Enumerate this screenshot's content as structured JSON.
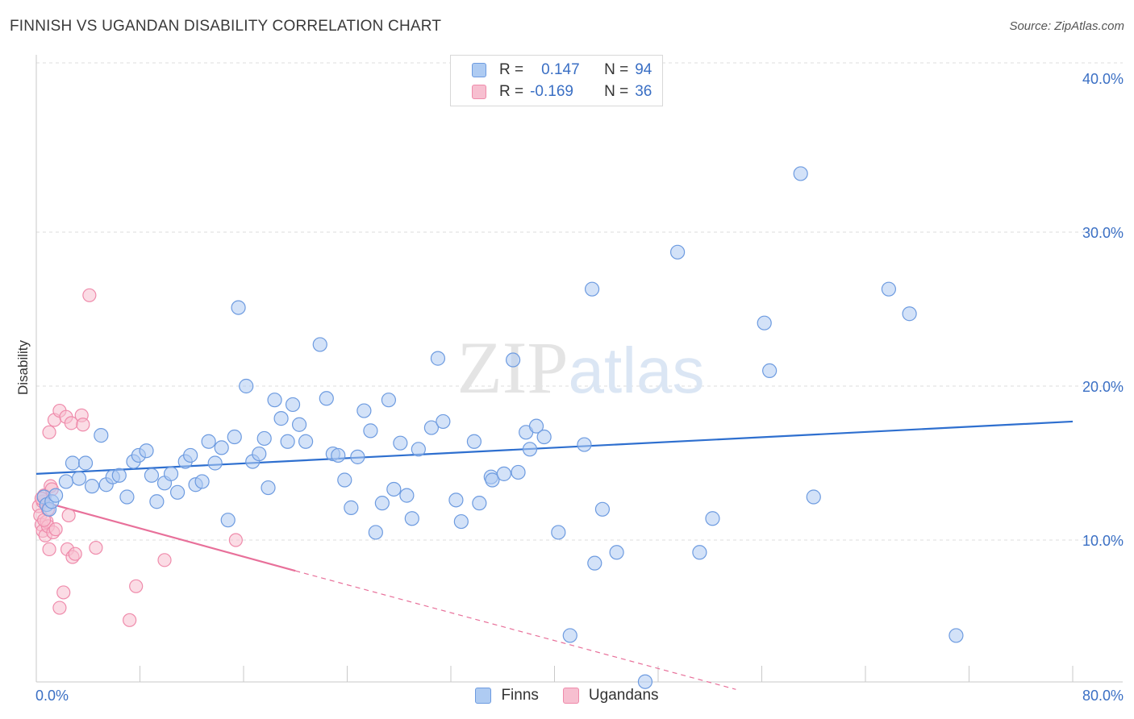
{
  "title": "FINNISH VS UGANDAN DISABILITY CORRELATION CHART",
  "source": "Source: ZipAtlas.com",
  "watermark": "ZIPatlas",
  "legend": {
    "rows": [
      {
        "r_label": "R =",
        "r_value": "0.147",
        "n_label": "N =",
        "n_value": "94"
      },
      {
        "r_label": "R =",
        "r_value": "-0.169",
        "n_label": "N =",
        "n_value": "36"
      }
    ]
  },
  "colors": {
    "finns_fill": "#aecbf2",
    "finns_stroke": "#6d9be0",
    "finns_line": "#2e6fcf",
    "ugandans_fill": "#f7bfd0",
    "ugandans_stroke": "#ef8bab",
    "ugandans_line": "#e8709a",
    "axis_label": "#3a6fc4"
  },
  "chart_data": {
    "type": "scatter",
    "title": "FINNISH VS UGANDAN DISABILITY CORRELATION CHART",
    "xlabel": "",
    "ylabel": "Disability",
    "xlim": [
      0,
      80
    ],
    "ylim": [
      0,
      40
    ],
    "x_tick_labels": [
      "0.0%",
      "80.0%"
    ],
    "y_tick_labels": [
      "10.0%",
      "20.0%",
      "30.0%",
      "40.0%"
    ],
    "y_ticks": [
      10,
      20,
      30,
      40
    ],
    "grid": true,
    "legend_placement": "top-center",
    "series": [
      {
        "name": "Finns",
        "r": 0.147,
        "n": 94,
        "trend": {
          "x": [
            0,
            80
          ],
          "y": [
            14.3,
            17.7
          ]
        },
        "points": [
          [
            0.6,
            12.8
          ],
          [
            0.8,
            12.3
          ],
          [
            1.0,
            12.0
          ],
          [
            1.2,
            12.5
          ],
          [
            1.5,
            12.9
          ],
          [
            2.3,
            13.8
          ],
          [
            2.8,
            15.0
          ],
          [
            3.3,
            14.0
          ],
          [
            3.8,
            15.0
          ],
          [
            4.3,
            13.5
          ],
          [
            5.0,
            16.8
          ],
          [
            5.4,
            13.6
          ],
          [
            5.9,
            14.1
          ],
          [
            6.4,
            14.2
          ],
          [
            7.0,
            12.8
          ],
          [
            7.5,
            15.1
          ],
          [
            7.9,
            15.5
          ],
          [
            8.5,
            15.8
          ],
          [
            8.9,
            14.2
          ],
          [
            9.3,
            12.5
          ],
          [
            9.9,
            13.7
          ],
          [
            10.4,
            14.3
          ],
          [
            10.9,
            13.1
          ],
          [
            11.5,
            15.1
          ],
          [
            11.9,
            15.5
          ],
          [
            12.3,
            13.6
          ],
          [
            12.8,
            13.8
          ],
          [
            13.3,
            16.4
          ],
          [
            13.8,
            15.0
          ],
          [
            14.3,
            16.0
          ],
          [
            14.8,
            11.3
          ],
          [
            15.3,
            16.7
          ],
          [
            15.6,
            25.1
          ],
          [
            16.2,
            20.0
          ],
          [
            16.7,
            15.1
          ],
          [
            17.2,
            15.6
          ],
          [
            17.6,
            16.6
          ],
          [
            17.9,
            13.4
          ],
          [
            18.4,
            19.1
          ],
          [
            18.9,
            17.9
          ],
          [
            19.4,
            16.4
          ],
          [
            19.8,
            18.8
          ],
          [
            20.3,
            17.5
          ],
          [
            20.8,
            16.4
          ],
          [
            21.9,
            22.7
          ],
          [
            22.4,
            19.2
          ],
          [
            22.9,
            15.6
          ],
          [
            23.3,
            15.5
          ],
          [
            23.8,
            13.9
          ],
          [
            24.3,
            12.1
          ],
          [
            24.8,
            15.4
          ],
          [
            25.3,
            18.4
          ],
          [
            25.8,
            17.1
          ],
          [
            26.2,
            10.5
          ],
          [
            26.7,
            12.4
          ],
          [
            27.2,
            19.1
          ],
          [
            27.6,
            13.3
          ],
          [
            28.1,
            16.3
          ],
          [
            28.6,
            12.9
          ],
          [
            29.0,
            11.4
          ],
          [
            29.5,
            15.9
          ],
          [
            30.5,
            17.3
          ],
          [
            31.0,
            21.8
          ],
          [
            31.4,
            17.7
          ],
          [
            32.4,
            12.6
          ],
          [
            32.8,
            11.2
          ],
          [
            33.8,
            16.4
          ],
          [
            34.2,
            12.4
          ],
          [
            35.1,
            14.1
          ],
          [
            35.2,
            13.9
          ],
          [
            36.1,
            14.3
          ],
          [
            37.2,
            14.4
          ],
          [
            36.8,
            21.7
          ],
          [
            37.8,
            17.0
          ],
          [
            38.1,
            15.9
          ],
          [
            38.6,
            17.4
          ],
          [
            39.2,
            16.7
          ],
          [
            40.3,
            10.5
          ],
          [
            41.2,
            3.8
          ],
          [
            42.3,
            16.2
          ],
          [
            42.9,
            26.3
          ],
          [
            43.1,
            8.5
          ],
          [
            43.7,
            12.0
          ],
          [
            44.8,
            9.2
          ],
          [
            49.5,
            28.7
          ],
          [
            51.2,
            9.2
          ],
          [
            52.2,
            11.4
          ],
          [
            56.2,
            24.1
          ],
          [
            56.6,
            21.0
          ],
          [
            59.0,
            33.8
          ],
          [
            60.0,
            12.8
          ],
          [
            65.8,
            26.3
          ],
          [
            67.4,
            24.7
          ],
          [
            71.0,
            3.8
          ],
          [
            47.0,
            0.8
          ]
        ]
      },
      {
        "name": "Ugandans",
        "r": -0.169,
        "n": 36,
        "trend": {
          "x": [
            0,
            20
          ],
          "y": [
            12.6,
            8.0
          ]
        },
        "trend_dashed": {
          "x": [
            20,
            54
          ],
          "y": [
            8.0,
            0.3
          ]
        },
        "points": [
          [
            0.2,
            12.2
          ],
          [
            0.3,
            11.6
          ],
          [
            0.4,
            11.0
          ],
          [
            0.5,
            10.6
          ],
          [
            0.5,
            12.5
          ],
          [
            0.6,
            12.9
          ],
          [
            0.7,
            10.3
          ],
          [
            0.8,
            11.2
          ],
          [
            0.9,
            10.9
          ],
          [
            1.0,
            9.4
          ],
          [
            1.0,
            17.0
          ],
          [
            1.1,
            13.5
          ],
          [
            1.2,
            13.3
          ],
          [
            1.3,
            10.5
          ],
          [
            1.4,
            17.8
          ],
          [
            1.5,
            10.7
          ],
          [
            1.8,
            5.6
          ],
          [
            1.8,
            18.4
          ],
          [
            2.1,
            6.6
          ],
          [
            2.3,
            18.0
          ],
          [
            2.4,
            9.4
          ],
          [
            2.5,
            11.6
          ],
          [
            2.7,
            17.6
          ],
          [
            2.8,
            8.9
          ],
          [
            3.0,
            9.1
          ],
          [
            3.5,
            18.1
          ],
          [
            3.6,
            17.5
          ],
          [
            4.1,
            25.9
          ],
          [
            4.6,
            9.5
          ],
          [
            7.2,
            4.8
          ],
          [
            7.7,
            7.0
          ],
          [
            9.9,
            8.7
          ],
          [
            15.4,
            10.0
          ],
          [
            0.4,
            12.7
          ],
          [
            0.6,
            11.3
          ],
          [
            0.9,
            12.0
          ]
        ]
      }
    ]
  }
}
